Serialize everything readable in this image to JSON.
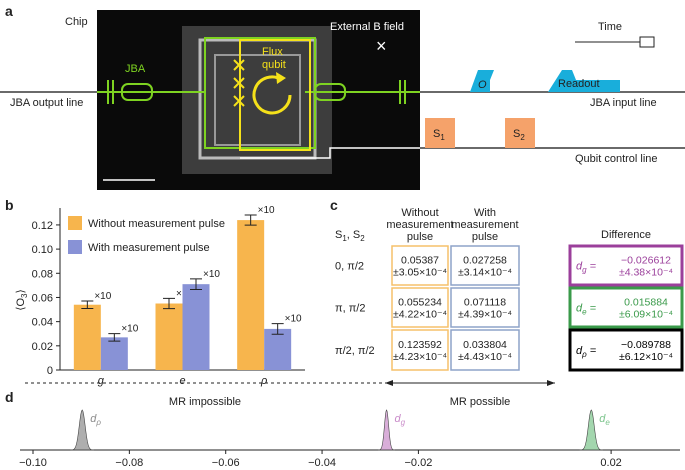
{
  "panel_labels": {
    "a": "a",
    "b": "b",
    "c": "c",
    "d": "d"
  },
  "diagram": {
    "chip": "Chip",
    "field": "External B field",
    "field_symbol": "×",
    "time": "Time",
    "jba": "JBA",
    "flux_qubit": [
      "Flux",
      "qubit"
    ],
    "output_line": "JBA output line",
    "input_line": "JBA input line",
    "control_line": "Qubit control line",
    "readout": "Readout",
    "observable": "O",
    "pulses": [
      [
        "S",
        "1"
      ],
      [
        "S",
        "2"
      ]
    ]
  },
  "chart_data": [
    {
      "type": "bar",
      "ylabel": [
        "⟨O",
        "3",
        "⟩"
      ],
      "categories": [
        "g",
        "e",
        "ρ"
      ],
      "series": [
        {
          "name": "Without measurement pulse",
          "color": "#f7b54d",
          "values": [
            0.054,
            0.055,
            0.124
          ],
          "errors": [
            0.0031,
            0.0042,
            0.0042
          ]
        },
        {
          "name": "With measurement pulse",
          "color": "#8892d6",
          "values": [
            0.027,
            0.071,
            0.034
          ],
          "errors": [
            0.0031,
            0.0044,
            0.0044
          ]
        }
      ],
      "error_scale_label": "×10",
      "ylim": [
        0,
        0.134
      ],
      "yticks": [
        0,
        0.02,
        0.04,
        0.06,
        0.08,
        {
          "value": 0.1,
          "label": "0.10"
        },
        0.12
      ]
    },
    {
      "type": "density",
      "series": [
        {
          "label": [
            "d",
            "ρ"
          ],
          "color": "#8c8c8c",
          "mean": -0.089788,
          "sd": 0.000612
        },
        {
          "label": [
            "d",
            "g"
          ],
          "color": "#c98bc9",
          "mean": -0.026612,
          "sd": 0.000438
        },
        {
          "label": [
            "d",
            "e"
          ],
          "color": "#7cc48c",
          "mean": 0.015884,
          "sd": 0.000609
        }
      ],
      "annotations": [
        "MR impossible",
        "MR possible"
      ],
      "xlim": [
        -0.1027,
        0.0343
      ],
      "xticks": [
        {
          "value": -0.1,
          "label": "−0.10"
        },
        {
          "value": -0.08,
          "label": "−0.08"
        },
        {
          "value": -0.06,
          "label": "−0.06"
        },
        {
          "value": -0.04,
          "label": "−0.04"
        },
        {
          "value": -0.02,
          "label": "−0.02"
        },
        0.02
      ]
    }
  ],
  "table": {
    "corner": [
      "S",
      "1",
      ", S",
      "2"
    ],
    "columns": [
      [
        "Without",
        "measurement",
        "pulse"
      ],
      [
        "With",
        "measurement",
        "pulse"
      ],
      [
        "Difference"
      ]
    ],
    "rows": [
      {
        "label": "0, π/2",
        "without": [
          "0.05387",
          "±3.05×10⁻⁴"
        ],
        "with": [
          "0.027258",
          "±3.14×10⁻⁴"
        ],
        "difference": {
          "symbol": [
            "d",
            "g",
            " ="
          ],
          "value": [
            "−0.026612",
            "±4.38×10⁻⁴"
          ],
          "color": "#9b3f9b"
        }
      },
      {
        "label": "π, π/2",
        "without": [
          "0.055234",
          "±4.22×10⁻⁴"
        ],
        "with": [
          "0.071118",
          "±4.39×10⁻⁴"
        ],
        "difference": {
          "symbol": [
            "d",
            "e",
            " ="
          ],
          "value": [
            "0.015884",
            "±6.09×10⁻⁴"
          ],
          "color": "#3a9a4a"
        }
      },
      {
        "label": "π/2, π/2",
        "without": [
          "0.123592",
          "±4.23×10⁻⁴"
        ],
        "with": [
          "0.033804",
          "±4.43×10⁻⁴"
        ],
        "difference": {
          "symbol": [
            "d",
            "ρ",
            " ="
          ],
          "value": [
            "−0.089788",
            "±6.12×10⁻⁴"
          ],
          "color": "#000000"
        }
      }
    ]
  }
}
